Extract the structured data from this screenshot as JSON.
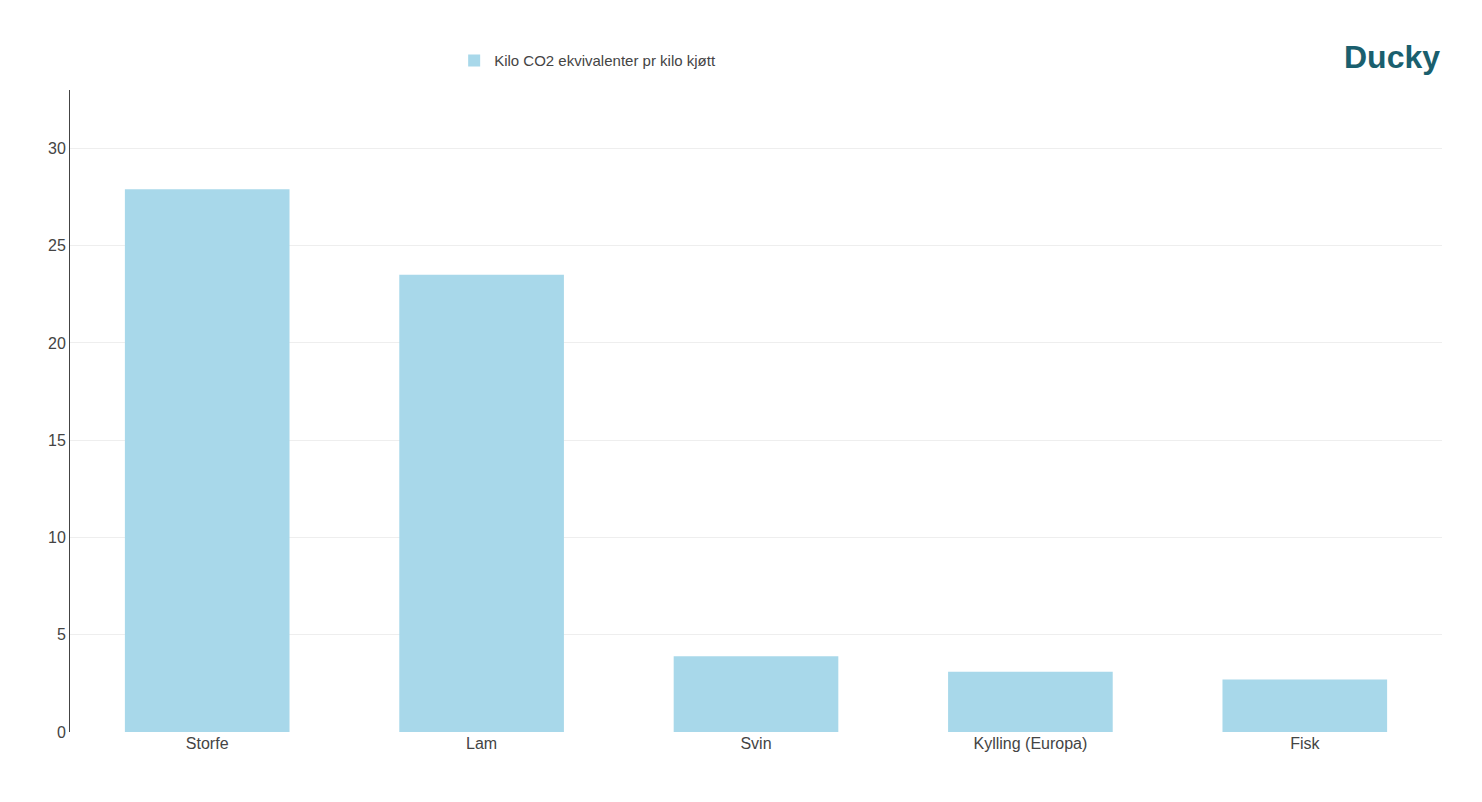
{
  "chart_data": {
    "type": "bar",
    "categories": [
      "Storfe",
      "Lam",
      "Svin",
      "Kylling (Europa)",
      "Fisk"
    ],
    "series": [
      {
        "name": "Kilo CO2 ekvivalenter pr kilo kjøtt",
        "color": "#a8d8ea",
        "values": [
          27.9,
          23.5,
          3.9,
          3.1,
          2.7
        ]
      }
    ],
    "ylim": [
      0,
      33
    ],
    "yticks": [
      0,
      5,
      10,
      15,
      20,
      25,
      30
    ],
    "grid": true,
    "legend": "top",
    "annotations": [
      {
        "text": "Ducky",
        "color": "#1a5f6e"
      }
    ]
  }
}
